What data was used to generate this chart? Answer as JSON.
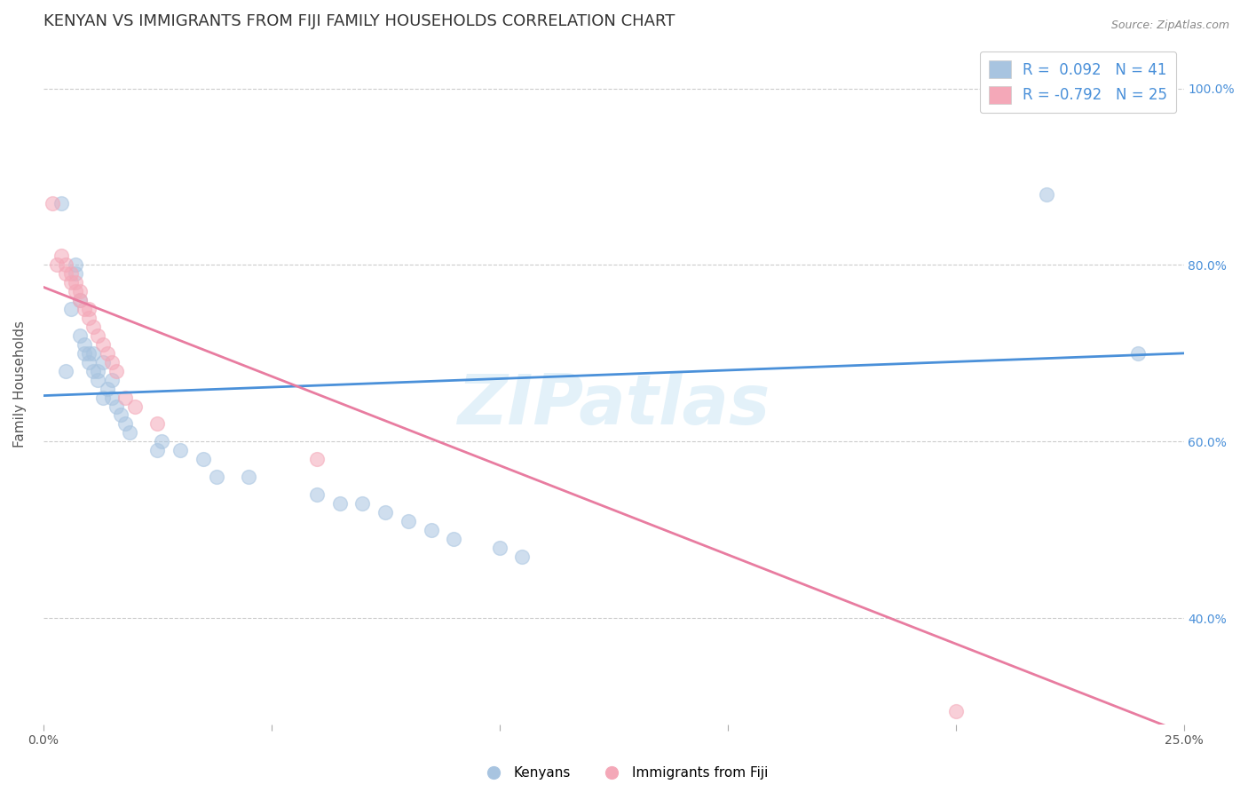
{
  "title": "KENYAN VS IMMIGRANTS FROM FIJI FAMILY HOUSEHOLDS CORRELATION CHART",
  "source": "Source: ZipAtlas.com",
  "ylabel": "Family Households",
  "yaxis_labels": [
    "40.0%",
    "60.0%",
    "80.0%",
    "100.0%"
  ],
  "yaxis_values": [
    0.4,
    0.6,
    0.8,
    1.0
  ],
  "xlim": [
    0.0,
    0.25
  ],
  "ylim": [
    0.28,
    1.05
  ],
  "kenyan_scatter": [
    [
      0.004,
      0.87
    ],
    [
      0.005,
      0.68
    ],
    [
      0.006,
      0.75
    ],
    [
      0.007,
      0.79
    ],
    [
      0.007,
      0.8
    ],
    [
      0.008,
      0.72
    ],
    [
      0.008,
      0.76
    ],
    [
      0.009,
      0.7
    ],
    [
      0.009,
      0.71
    ],
    [
      0.01,
      0.69
    ],
    [
      0.01,
      0.7
    ],
    [
      0.011,
      0.68
    ],
    [
      0.011,
      0.7
    ],
    [
      0.012,
      0.67
    ],
    [
      0.012,
      0.68
    ],
    [
      0.013,
      0.65
    ],
    [
      0.013,
      0.69
    ],
    [
      0.014,
      0.66
    ],
    [
      0.015,
      0.65
    ],
    [
      0.015,
      0.67
    ],
    [
      0.016,
      0.64
    ],
    [
      0.017,
      0.63
    ],
    [
      0.018,
      0.62
    ],
    [
      0.019,
      0.61
    ],
    [
      0.025,
      0.59
    ],
    [
      0.026,
      0.6
    ],
    [
      0.03,
      0.59
    ],
    [
      0.035,
      0.58
    ],
    [
      0.038,
      0.56
    ],
    [
      0.045,
      0.56
    ],
    [
      0.06,
      0.54
    ],
    [
      0.065,
      0.53
    ],
    [
      0.07,
      0.53
    ],
    [
      0.075,
      0.52
    ],
    [
      0.08,
      0.51
    ],
    [
      0.085,
      0.5
    ],
    [
      0.09,
      0.49
    ],
    [
      0.1,
      0.48
    ],
    [
      0.105,
      0.47
    ],
    [
      0.22,
      0.88
    ],
    [
      0.24,
      0.7
    ]
  ],
  "fiji_scatter": [
    [
      0.002,
      0.87
    ],
    [
      0.003,
      0.8
    ],
    [
      0.004,
      0.81
    ],
    [
      0.005,
      0.79
    ],
    [
      0.005,
      0.8
    ],
    [
      0.006,
      0.78
    ],
    [
      0.006,
      0.79
    ],
    [
      0.007,
      0.77
    ],
    [
      0.007,
      0.78
    ],
    [
      0.008,
      0.76
    ],
    [
      0.008,
      0.77
    ],
    [
      0.009,
      0.75
    ],
    [
      0.01,
      0.74
    ],
    [
      0.01,
      0.75
    ],
    [
      0.011,
      0.73
    ],
    [
      0.012,
      0.72
    ],
    [
      0.013,
      0.71
    ],
    [
      0.014,
      0.7
    ],
    [
      0.015,
      0.69
    ],
    [
      0.016,
      0.68
    ],
    [
      0.018,
      0.65
    ],
    [
      0.02,
      0.64
    ],
    [
      0.025,
      0.62
    ],
    [
      0.06,
      0.58
    ],
    [
      0.2,
      0.295
    ]
  ],
  "kenyan_line_color": "#4a90d9",
  "fiji_line_color": "#e87ca0",
  "kenyan_dot_color": "#a8c4e0",
  "fiji_dot_color": "#f4a8b8",
  "watermark": "ZIPatlas",
  "grid_color": "#cccccc",
  "background_color": "#ffffff",
  "title_fontsize": 13,
  "axis_label_fontsize": 11,
  "tick_fontsize": 10,
  "legend_fontsize": 12,
  "dot_size": 130,
  "dot_alpha": 0.55,
  "line_width": 2.0,
  "kenyan_line_endpoints": [
    [
      0.0,
      0.652
    ],
    [
      0.25,
      0.7
    ]
  ],
  "fiji_line_endpoints": [
    [
      0.0,
      0.775
    ],
    [
      0.25,
      0.27
    ]
  ]
}
